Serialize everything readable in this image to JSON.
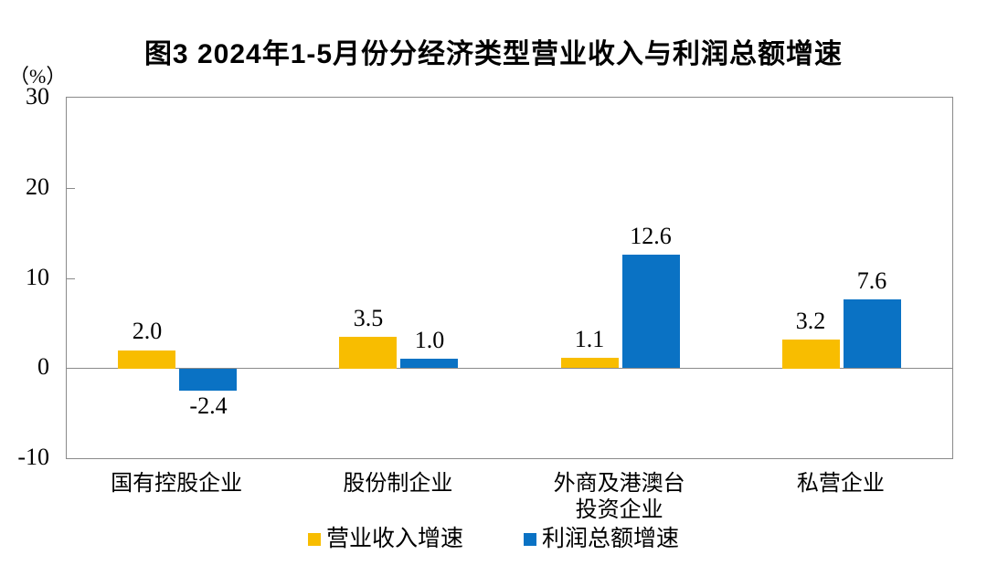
{
  "title": "图3  2024年1-5月份分经济类型营业收入与利润总额增速",
  "unit_label": "（%）",
  "colors": {
    "revenue": "#f8bd00",
    "profit": "#0a72c4",
    "axis": "#8a8a8a",
    "text": "#000000"
  },
  "chart_data": {
    "type": "bar",
    "categories": [
      "国有控股企业",
      "股份制企业",
      "外商及港澳台\n投资企业",
      "私营企业"
    ],
    "series": [
      {
        "name": "营业收入增速",
        "color_key": "revenue",
        "values": [
          2.0,
          3.5,
          1.1,
          3.2
        ]
      },
      {
        "name": "利润总额增速",
        "color_key": "profit",
        "values": [
          -2.4,
          1.0,
          12.6,
          7.6
        ]
      }
    ],
    "value_label_decimals": 1,
    "xlabel": "",
    "ylabel": "（%）",
    "ylim": [
      -10,
      30
    ],
    "yticks": [
      30,
      20,
      10,
      0,
      -10
    ],
    "grid": false,
    "legend_position": "bottom"
  }
}
